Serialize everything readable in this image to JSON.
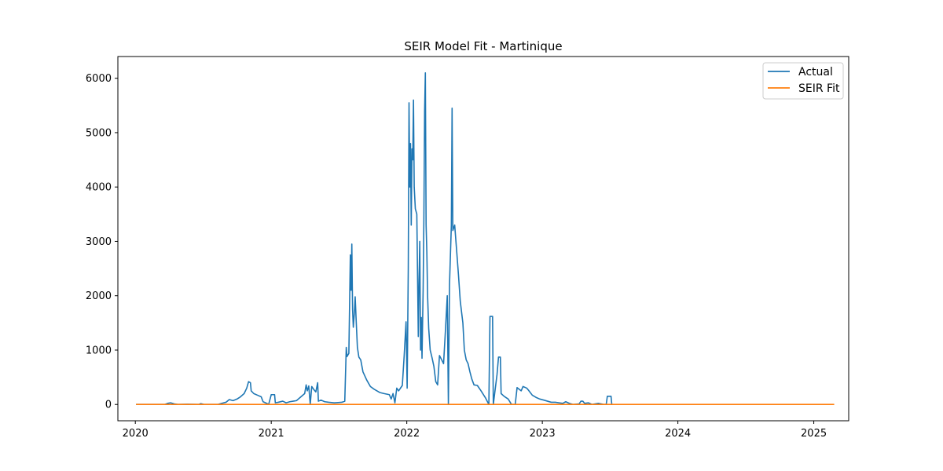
{
  "chart_data": {
    "type": "line",
    "title": "SEIR Model Fit - Martinique",
    "xlabel": "",
    "ylabel": "",
    "x_axis": "date",
    "xlim": [
      "2019-11-15",
      "2025-04-05"
    ],
    "ylim": [
      -300,
      6400
    ],
    "x_ticks": [
      "2020",
      "2021",
      "2022",
      "2023",
      "2024",
      "2025"
    ],
    "y_ticks": [
      0,
      1000,
      2000,
      3000,
      4000,
      5000,
      6000
    ],
    "grid": false,
    "legend_position": "top-right",
    "series": [
      {
        "name": "Actual",
        "color": "#1f77b4",
        "points": [
          [
            "2020-01-03",
            0
          ],
          [
            "2020-03-20",
            0
          ],
          [
            "2020-03-28",
            20
          ],
          [
            "2020-04-05",
            30
          ],
          [
            "2020-04-15",
            10
          ],
          [
            "2020-04-25",
            0
          ],
          [
            "2020-05-20",
            5
          ],
          [
            "2020-06-20",
            0
          ],
          [
            "2020-06-25",
            15
          ],
          [
            "2020-07-05",
            0
          ],
          [
            "2020-08-10",
            0
          ],
          [
            "2020-08-20",
            20
          ],
          [
            "2020-09-01",
            40
          ],
          [
            "2020-09-10",
            90
          ],
          [
            "2020-09-20",
            70
          ],
          [
            "2020-10-01",
            100
          ],
          [
            "2020-10-10",
            140
          ],
          [
            "2020-10-20",
            200
          ],
          [
            "2020-10-27",
            300
          ],
          [
            "2020-11-01",
            420
          ],
          [
            "2020-11-06",
            400
          ],
          [
            "2020-11-08",
            250
          ],
          [
            "2020-11-15",
            200
          ],
          [
            "2020-11-25",
            170
          ],
          [
            "2020-12-05",
            140
          ],
          [
            "2020-12-10",
            50
          ],
          [
            "2020-12-20",
            20
          ],
          [
            "2020-12-25",
            0
          ],
          [
            "2021-01-01",
            180
          ],
          [
            "2021-01-10",
            180
          ],
          [
            "2021-01-12",
            30
          ],
          [
            "2021-01-20",
            40
          ],
          [
            "2021-02-01",
            60
          ],
          [
            "2021-02-10",
            30
          ],
          [
            "2021-02-20",
            50
          ],
          [
            "2021-03-01",
            60
          ],
          [
            "2021-03-10",
            70
          ],
          [
            "2021-03-20",
            130
          ],
          [
            "2021-04-01",
            200
          ],
          [
            "2021-04-05",
            360
          ],
          [
            "2021-04-08",
            250
          ],
          [
            "2021-04-12",
            340
          ],
          [
            "2021-04-16",
            0
          ],
          [
            "2021-04-20",
            330
          ],
          [
            "2021-04-25",
            280
          ],
          [
            "2021-05-01",
            230
          ],
          [
            "2021-05-06",
            400
          ],
          [
            "2021-05-08",
            60
          ],
          [
            "2021-05-15",
            80
          ],
          [
            "2021-05-25",
            50
          ],
          [
            "2021-06-05",
            40
          ],
          [
            "2021-06-20",
            30
          ],
          [
            "2021-07-10",
            40
          ],
          [
            "2021-07-18",
            60
          ],
          [
            "2021-07-22",
            1050
          ],
          [
            "2021-07-24",
            880
          ],
          [
            "2021-07-29",
            940
          ],
          [
            "2021-08-02",
            2750
          ],
          [
            "2021-08-04",
            2100
          ],
          [
            "2021-08-06",
            2950
          ],
          [
            "2021-08-08",
            1750
          ],
          [
            "2021-08-10",
            1420
          ],
          [
            "2021-08-13",
            1700
          ],
          [
            "2021-08-15",
            1980
          ],
          [
            "2021-08-18",
            1500
          ],
          [
            "2021-08-21",
            1050
          ],
          [
            "2021-08-25",
            870
          ],
          [
            "2021-08-30",
            820
          ],
          [
            "2021-09-05",
            600
          ],
          [
            "2021-09-15",
            450
          ],
          [
            "2021-09-25",
            330
          ],
          [
            "2021-10-05",
            280
          ],
          [
            "2021-10-20",
            220
          ],
          [
            "2021-11-01",
            200
          ],
          [
            "2021-11-15",
            180
          ],
          [
            "2021-11-20",
            100
          ],
          [
            "2021-11-25",
            200
          ],
          [
            "2021-11-30",
            30
          ],
          [
            "2021-12-05",
            300
          ],
          [
            "2021-12-10",
            250
          ],
          [
            "2021-12-20",
            350
          ],
          [
            "2021-12-25",
            900
          ],
          [
            "2021-12-30",
            1520
          ],
          [
            "2022-01-02",
            300
          ],
          [
            "2022-01-05",
            2500
          ],
          [
            "2022-01-07",
            5550
          ],
          [
            "2022-01-09",
            4000
          ],
          [
            "2022-01-11",
            4800
          ],
          [
            "2022-01-13",
            3300
          ],
          [
            "2022-01-15",
            4700
          ],
          [
            "2022-01-17",
            4500
          ],
          [
            "2022-01-19",
            5600
          ],
          [
            "2022-01-21",
            4000
          ],
          [
            "2022-01-24",
            3600
          ],
          [
            "2022-01-28",
            3500
          ],
          [
            "2022-02-01",
            1250
          ],
          [
            "2022-02-03",
            2300
          ],
          [
            "2022-02-05",
            3000
          ],
          [
            "2022-02-07",
            1000
          ],
          [
            "2022-02-09",
            1600
          ],
          [
            "2022-02-11",
            850
          ],
          [
            "2022-02-14",
            2100
          ],
          [
            "2022-02-16",
            3400
          ],
          [
            "2022-02-18",
            5400
          ],
          [
            "2022-02-20",
            6100
          ],
          [
            "2022-02-22",
            3300
          ],
          [
            "2022-02-24",
            2800
          ],
          [
            "2022-02-26",
            2000
          ],
          [
            "2022-03-01",
            1400
          ],
          [
            "2022-03-05",
            1000
          ],
          [
            "2022-03-10",
            860
          ],
          [
            "2022-03-15",
            700
          ],
          [
            "2022-03-20",
            420
          ],
          [
            "2022-03-25",
            360
          ],
          [
            "2022-03-30",
            900
          ],
          [
            "2022-04-05",
            820
          ],
          [
            "2022-04-10",
            750
          ],
          [
            "2022-04-15",
            1350
          ],
          [
            "2022-04-20",
            2000
          ],
          [
            "2022-04-23",
            0
          ],
          [
            "2022-04-26",
            2200
          ],
          [
            "2022-05-01",
            3300
          ],
          [
            "2022-05-03",
            5450
          ],
          [
            "2022-05-05",
            3200
          ],
          [
            "2022-05-10",
            3300
          ],
          [
            "2022-05-15",
            2850
          ],
          [
            "2022-05-20",
            2400
          ],
          [
            "2022-05-25",
            1900
          ],
          [
            "2022-06-01",
            1500
          ],
          [
            "2022-06-05",
            1000
          ],
          [
            "2022-06-10",
            820
          ],
          [
            "2022-06-15",
            750
          ],
          [
            "2022-06-20",
            600
          ],
          [
            "2022-06-25",
            470
          ],
          [
            "2022-07-01",
            360
          ],
          [
            "2022-07-10",
            350
          ],
          [
            "2022-07-20",
            250
          ],
          [
            "2022-08-01",
            120
          ],
          [
            "2022-08-10",
            0
          ],
          [
            "2022-08-13",
            1620
          ],
          [
            "2022-08-20",
            1620
          ],
          [
            "2022-08-22",
            0
          ],
          [
            "2022-09-01",
            550
          ],
          [
            "2022-09-05",
            870
          ],
          [
            "2022-09-10",
            870
          ],
          [
            "2022-09-12",
            200
          ],
          [
            "2022-09-20",
            150
          ],
          [
            "2022-10-01",
            100
          ],
          [
            "2022-10-10",
            0
          ],
          [
            "2022-10-20",
            0
          ],
          [
            "2022-10-25",
            310
          ],
          [
            "2022-11-05",
            250
          ],
          [
            "2022-11-10",
            330
          ],
          [
            "2022-11-20",
            300
          ],
          [
            "2022-11-25",
            260
          ],
          [
            "2022-12-05",
            170
          ],
          [
            "2022-12-15",
            130
          ],
          [
            "2022-12-25",
            100
          ],
          [
            "2023-01-05",
            80
          ],
          [
            "2023-01-15",
            60
          ],
          [
            "2023-01-25",
            40
          ],
          [
            "2023-02-05",
            40
          ],
          [
            "2023-02-15",
            30
          ],
          [
            "2023-02-25",
            20
          ],
          [
            "2023-03-05",
            50
          ],
          [
            "2023-03-15",
            20
          ],
          [
            "2023-03-25",
            0
          ],
          [
            "2023-04-10",
            10
          ],
          [
            "2023-04-15",
            60
          ],
          [
            "2023-04-20",
            60
          ],
          [
            "2023-04-25",
            20
          ],
          [
            "2023-05-05",
            30
          ],
          [
            "2023-05-15",
            0
          ],
          [
            "2023-06-01",
            20
          ],
          [
            "2023-06-15",
            0
          ],
          [
            "2023-06-22",
            0
          ],
          [
            "2023-06-25",
            150
          ],
          [
            "2023-07-05",
            150
          ],
          [
            "2023-07-07",
            0
          ]
        ]
      },
      {
        "name": "SEIR Fit",
        "color": "#ff7f0e",
        "points": [
          [
            "2020-01-03",
            0
          ],
          [
            "2025-02-25",
            0
          ]
        ]
      }
    ]
  }
}
